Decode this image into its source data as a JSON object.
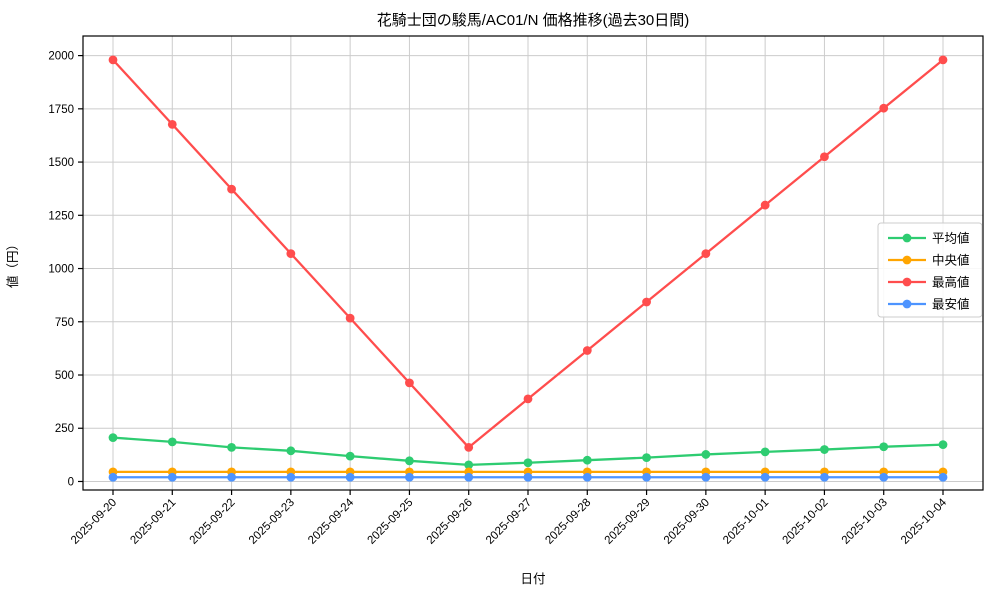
{
  "figure": {
    "background": "#ffffff",
    "plot_border_color": "#000000"
  },
  "chart_data": {
    "type": "line",
    "title": "花騎士団の駿馬/AC01/N 価格推移(過去30日間)",
    "xlabel": "日付",
    "ylabel": "値（円）",
    "categories": [
      "2025-09-20",
      "2025-09-21",
      "2025-09-22",
      "2025-09-23",
      "2025-09-24",
      "2025-09-25",
      "2025-09-26",
      "2025-09-27",
      "2025-09-28",
      "2025-09-29",
      "2025-09-30",
      "2025-10-01",
      "2025-10-02",
      "2025-10-03",
      "2025-10-04"
    ],
    "series": [
      {
        "name": "平均値",
        "color": "#2ecc71",
        "values": [
          206,
          186,
          160,
          144,
          119,
          97,
          78,
          88,
          100,
          112,
          127,
          139,
          150,
          163,
          173
        ]
      },
      {
        "name": "中央値",
        "color": "#ffa500",
        "values": [
          45,
          45,
          45,
          45,
          45,
          45,
          45,
          45,
          45,
          45,
          45,
          45,
          45,
          45,
          45
        ]
      },
      {
        "name": "最高値",
        "color": "#ff4d4d",
        "values": [
          1980,
          1677,
          1373,
          1070,
          767,
          463,
          160,
          388,
          615,
          843,
          1070,
          1298,
          1525,
          1753,
          1980
        ]
      },
      {
        "name": "最安値",
        "color": "#4d94ff",
        "values": [
          20,
          20,
          20,
          20,
          20,
          20,
          20,
          20,
          20,
          20,
          20,
          20,
          20,
          20,
          20
        ]
      }
    ],
    "yticks": [
      0,
      250,
      500,
      750,
      1000,
      1250,
      1500,
      1750,
      2000
    ],
    "ylim": [
      -40,
      2092
    ],
    "grid": true,
    "grid_color": "#cccccc",
    "legend": {
      "position": "center-right",
      "border_color": "#cccccc",
      "background": "#ffffff"
    }
  }
}
